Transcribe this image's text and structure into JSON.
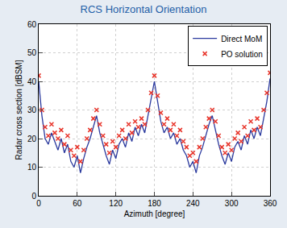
{
  "chart_data": {
    "type": "line",
    "title": "RCS Horizontal Orientation",
    "x_label": "Azimuth [degree]",
    "y_label": "Radar cross section [dBSM]",
    "x": [
      0,
      5,
      10,
      15,
      20,
      25,
      30,
      35,
      40,
      45,
      50,
      55,
      60,
      65,
      70,
      75,
      80,
      85,
      90,
      95,
      100,
      105,
      110,
      115,
      120,
      125,
      130,
      135,
      140,
      145,
      150,
      155,
      160,
      165,
      170,
      175,
      180,
      185,
      190,
      195,
      200,
      205,
      210,
      215,
      220,
      225,
      230,
      235,
      240,
      245,
      250,
      255,
      260,
      265,
      270,
      275,
      280,
      285,
      290,
      295,
      300,
      305,
      310,
      315,
      320,
      325,
      330,
      335,
      340,
      345,
      350,
      355,
      360
    ],
    "series": [
      {
        "name": "Direct MoM",
        "type": "line",
        "color": "#2b3a9e",
        "line_style": "solid",
        "values": [
          40,
          28,
          20,
          18,
          22,
          19,
          16,
          20,
          15,
          18,
          12,
          10,
          14,
          8,
          13,
          17,
          20,
          24,
          28,
          22,
          18,
          14,
          11,
          16,
          13,
          18,
          20,
          17,
          22,
          19,
          24,
          21,
          25,
          22,
          28,
          34,
          40,
          33,
          26,
          22,
          24,
          20,
          22,
          18,
          20,
          16,
          14,
          10,
          12,
          8,
          14,
          17,
          21,
          25,
          28,
          23,
          18,
          14,
          11,
          15,
          12,
          17,
          19,
          16,
          21,
          18,
          23,
          20,
          24,
          21,
          27,
          33,
          41
        ]
      },
      {
        "name": "PO solution",
        "type": "scatter",
        "color": "#e8352b",
        "marker": "x",
        "values": [
          42,
          30,
          24,
          21,
          25,
          22,
          20,
          23,
          18,
          21,
          16,
          14,
          17,
          12,
          16,
          20,
          23,
          27,
          30,
          25,
          21,
          18,
          15,
          19,
          17,
          21,
          23,
          20,
          25,
          22,
          26,
          24,
          27,
          25,
          30,
          36,
          42,
          35,
          29,
          25,
          27,
          23,
          25,
          21,
          23,
          19,
          17,
          14,
          15,
          12,
          17,
          20,
          24,
          27,
          30,
          26,
          21,
          17,
          15,
          18,
          16,
          20,
          22,
          19,
          24,
          21,
          26,
          23,
          27,
          24,
          30,
          36,
          43
        ]
      }
    ],
    "xlim": [
      0,
      360
    ],
    "xticks": [
      0,
      60,
      120,
      180,
      240,
      300,
      360
    ],
    "ylim": [
      0,
      60
    ],
    "yticks": [
      0,
      10,
      20,
      30,
      40,
      50,
      60
    ],
    "grid": true,
    "legend": "northeast"
  }
}
